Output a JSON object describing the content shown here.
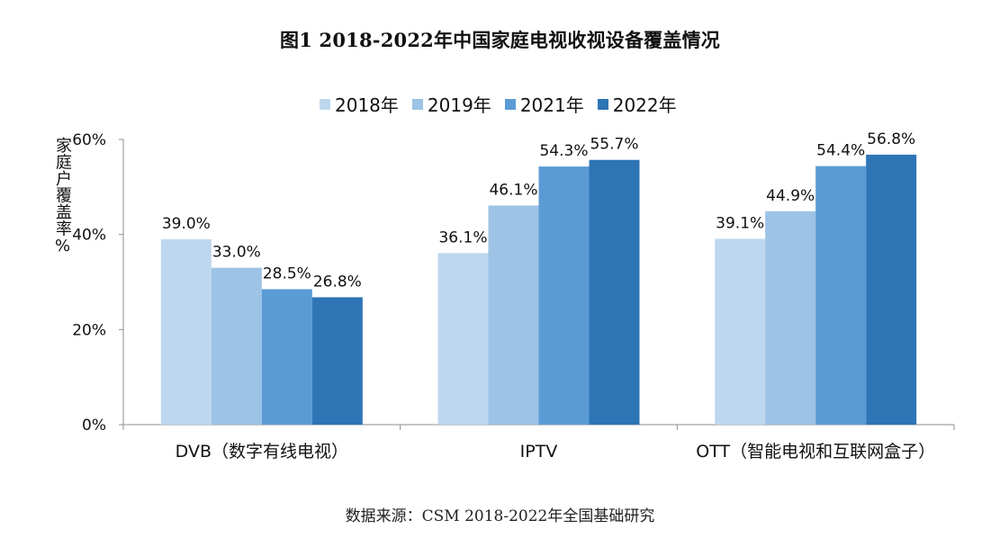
{
  "chart_data": {
    "type": "bar",
    "title": "图1 2018-2022年中国家庭电视收视设备覆盖情况",
    "ylabel": "家庭户覆盖率%",
    "xlabel": "",
    "ylim": [
      0,
      60
    ],
    "yticks": [
      "0%",
      "20%",
      "40%",
      "60%"
    ],
    "categories": [
      "DVB（数字有线电视）",
      "IPTV",
      "OTT（智能电视和互联网盒子）"
    ],
    "series": [
      {
        "name": "2018年",
        "color": "#bdd7ee",
        "values": [
          39.0,
          36.1,
          39.1
        ],
        "labels": [
          "39.0%",
          "36.1%",
          "39.1%"
        ]
      },
      {
        "name": "2019年",
        "color": "#9dc3e6",
        "values": [
          33.0,
          46.1,
          44.9
        ],
        "labels": [
          "33.0%",
          "46.1%",
          "44.9%"
        ]
      },
      {
        "name": "2021年",
        "color": "#5b9bd5",
        "values": [
          28.5,
          54.3,
          54.4
        ],
        "labels": [
          "28.5%",
          "54.3%",
          "54.4%"
        ]
      },
      {
        "name": "2022年",
        "color": "#2e75b6",
        "values": [
          26.8,
          55.7,
          56.8
        ],
        "labels": [
          "26.8%",
          "55.7%",
          "56.8%"
        ]
      }
    ],
    "legend_position": "top",
    "grid": false
  },
  "source_text": "数据来源：CSM 2018-2022年全国基础研究"
}
